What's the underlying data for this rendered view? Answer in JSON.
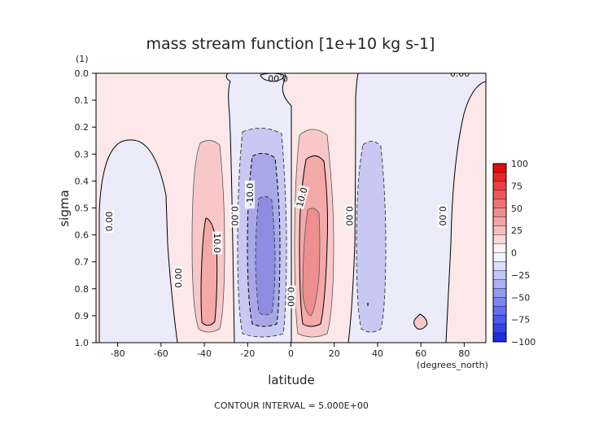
{
  "chart_data": {
    "type": "contour",
    "title": "mass stream function [1e+10 kg s-1]",
    "xlabel": "latitude",
    "x_units": "(degrees_north)",
    "ylabel": "sigma",
    "y_units": "(1)",
    "xlim": [
      -90,
      90
    ],
    "ylim": [
      1.0,
      0.0
    ],
    "x_ticks": [
      "-80",
      "-60",
      "-40",
      "-20",
      "0",
      "20",
      "40",
      "60",
      "80"
    ],
    "y_ticks": [
      "0.0",
      "0.1",
      "0.2",
      "0.3",
      "0.4",
      "0.5",
      "0.6",
      "0.7",
      "0.8",
      "0.9",
      "1.0"
    ],
    "footer": "CONTOUR INTERVAL = 5.000E+00",
    "colorbar": {
      "labels": [
        "100",
        "75",
        "50",
        "25",
        "0",
        "−25",
        "−50",
        "−75",
        "−100"
      ],
      "positive_color": "#e00000",
      "negative_color": "#1020e0",
      "zero_color": "#ffffff"
    },
    "contour_labels": [
      {
        "text": "0.00",
        "lat": -84,
        "sigma": 0.55,
        "rotation": -90
      },
      {
        "text": "0.00",
        "lat": -52,
        "sigma": 0.76,
        "rotation": -90
      },
      {
        "text": "10.0",
        "lat": -34,
        "sigma": 0.63,
        "rotation": 90
      },
      {
        "text": "0.00",
        "lat": -26,
        "sigma": 0.53,
        "rotation": 90
      },
      {
        "text": "-10.0",
        "lat": -19,
        "sigma": 0.45,
        "rotation": -90
      },
      {
        "text": "0.00",
        "lat": -6,
        "sigma": 0.02,
        "rotation": 180
      },
      {
        "text": "10.0",
        "lat": 5,
        "sigma": 0.46,
        "rotation": -75
      },
      {
        "text": "0.00",
        "lat": 0,
        "sigma": 0.83,
        "rotation": 90
      },
      {
        "text": "0.00",
        "lat": 27,
        "sigma": 0.53,
        "rotation": 90
      },
      {
        "text": "0.00",
        "lat": 70,
        "sigma": 0.53,
        "rotation": 90
      },
      {
        "text": "0.00",
        "lat": 78,
        "sigma": 0.0,
        "rotation": 0
      }
    ],
    "cells": [
      {
        "sign": "positive",
        "lat_range": [
          -90,
          90
        ],
        "sigma_range": [
          0.0,
          1.0
        ],
        "peak": 5,
        "note": "background"
      },
      {
        "sign": "negative",
        "lat_range": [
          -88,
          -57
        ],
        "sigma_range": [
          0.24,
          1.0
        ],
        "peak": -4
      },
      {
        "sign": "negative",
        "lat_range": [
          -25,
          -2
        ],
        "sigma_range": [
          0.0,
          1.0
        ],
        "peak": -3
      },
      {
        "sign": "positive",
        "lat_range": [
          -44,
          -30
        ],
        "sigma_range": [
          0.27,
          0.98
        ],
        "peak": 15
      },
      {
        "sign": "negative",
        "lat_range": [
          -19,
          0
        ],
        "sigma_range": [
          0.21,
          0.97
        ],
        "peak": -25
      },
      {
        "sign": "positive",
        "lat_range": [
          0,
          21
        ],
        "sigma_range": [
          0.2,
          0.98
        ],
        "peak": 25
      },
      {
        "sign": "negative",
        "lat_range": [
          32,
          63
        ],
        "sigma_range": [
          0.0,
          1.0
        ],
        "peak": -4
      },
      {
        "sign": "negative",
        "lat_range": [
          32,
          44
        ],
        "sigma_range": [
          0.26,
          0.97
        ],
        "peak": -12
      }
    ]
  }
}
